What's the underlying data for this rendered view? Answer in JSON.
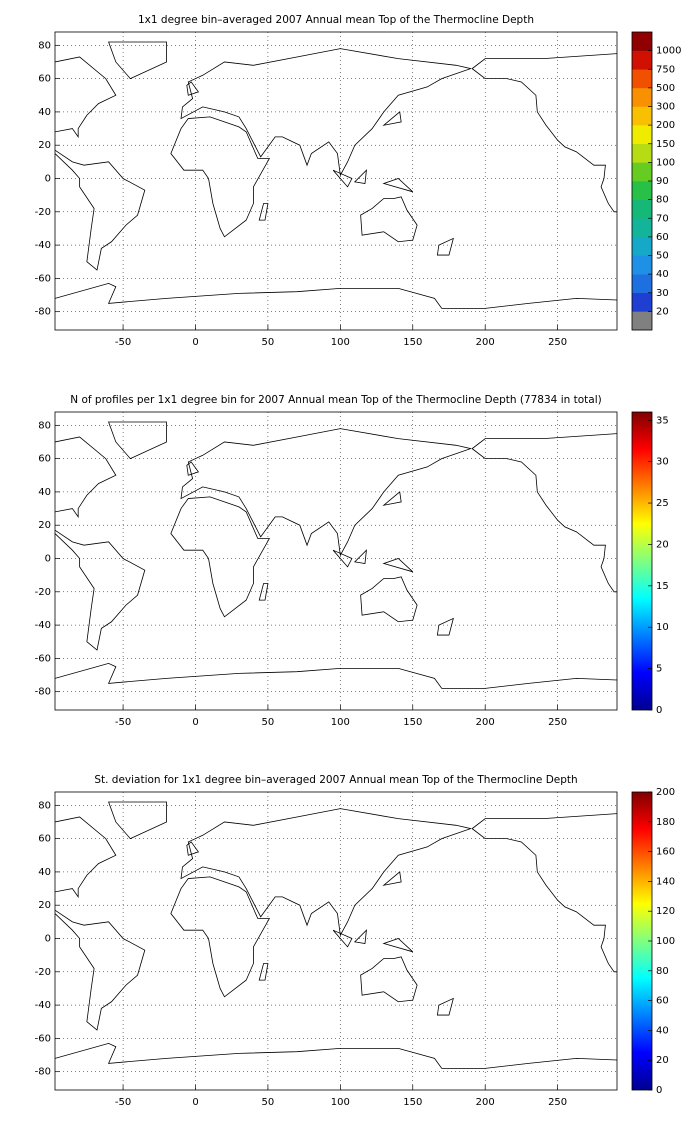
{
  "chart_data": [
    {
      "type": "map",
      "title": "1x1 degree bin–averaged 2007 Annual mean Top of the Thermocline Depth",
      "xlim": [
        -97,
        291
      ],
      "xticks": [
        -50,
        0,
        50,
        100,
        150,
        200,
        250
      ],
      "ylim": [
        -91,
        88
      ],
      "yticks": [
        -80,
        -60,
        -40,
        -20,
        0,
        20,
        40,
        60,
        80
      ],
      "grid": true,
      "colorbar": {
        "kind": "discrete",
        "ticks": [
          20,
          30,
          40,
          50,
          60,
          70,
          80,
          90,
          100,
          150,
          200,
          300,
          500,
          750,
          1000
        ],
        "colors": [
          "#808080",
          "#1e3fd2",
          "#1e6fe0",
          "#1e90e6",
          "#16a8c8",
          "#12b49a",
          "#16b878",
          "#28c046",
          "#66cc22",
          "#b6dc14",
          "#f0ec00",
          "#f8c000",
          "#f89000",
          "#f05000",
          "#d01000",
          "#900000"
        ]
      }
    },
    {
      "type": "map",
      "title": "N of profiles per 1x1 degree bin for 2007 Annual mean Top of the Thermocline Depth  (77834 in total)",
      "xlim": [
        -97,
        291
      ],
      "xticks": [
        -50,
        0,
        50,
        100,
        150,
        200,
        250
      ],
      "ylim": [
        -91,
        88
      ],
      "yticks": [
        -80,
        -60,
        -40,
        -20,
        0,
        20,
        40,
        60,
        80
      ],
      "grid": true,
      "colorbar": {
        "kind": "continuous",
        "colormap": "jet",
        "clim": [
          0,
          36
        ],
        "ticks": [
          0,
          5,
          10,
          15,
          20,
          25,
          30,
          35
        ]
      }
    },
    {
      "type": "map",
      "title": "St. deviation for 1x1 degree bin–averaged 2007 Annual mean Top of the Thermocline Depth",
      "xlim": [
        -97,
        291
      ],
      "xticks": [
        -50,
        0,
        50,
        100,
        150,
        200,
        250
      ],
      "ylim": [
        -91,
        88
      ],
      "yticks": [
        -80,
        -60,
        -40,
        -20,
        0,
        20,
        40,
        60,
        80
      ],
      "grid": true,
      "colorbar": {
        "kind": "continuous",
        "colormap": "jet",
        "clim": [
          0,
          200
        ],
        "ticks": [
          0,
          20,
          40,
          60,
          80,
          100,
          120,
          140,
          160,
          180,
          200
        ]
      }
    }
  ]
}
